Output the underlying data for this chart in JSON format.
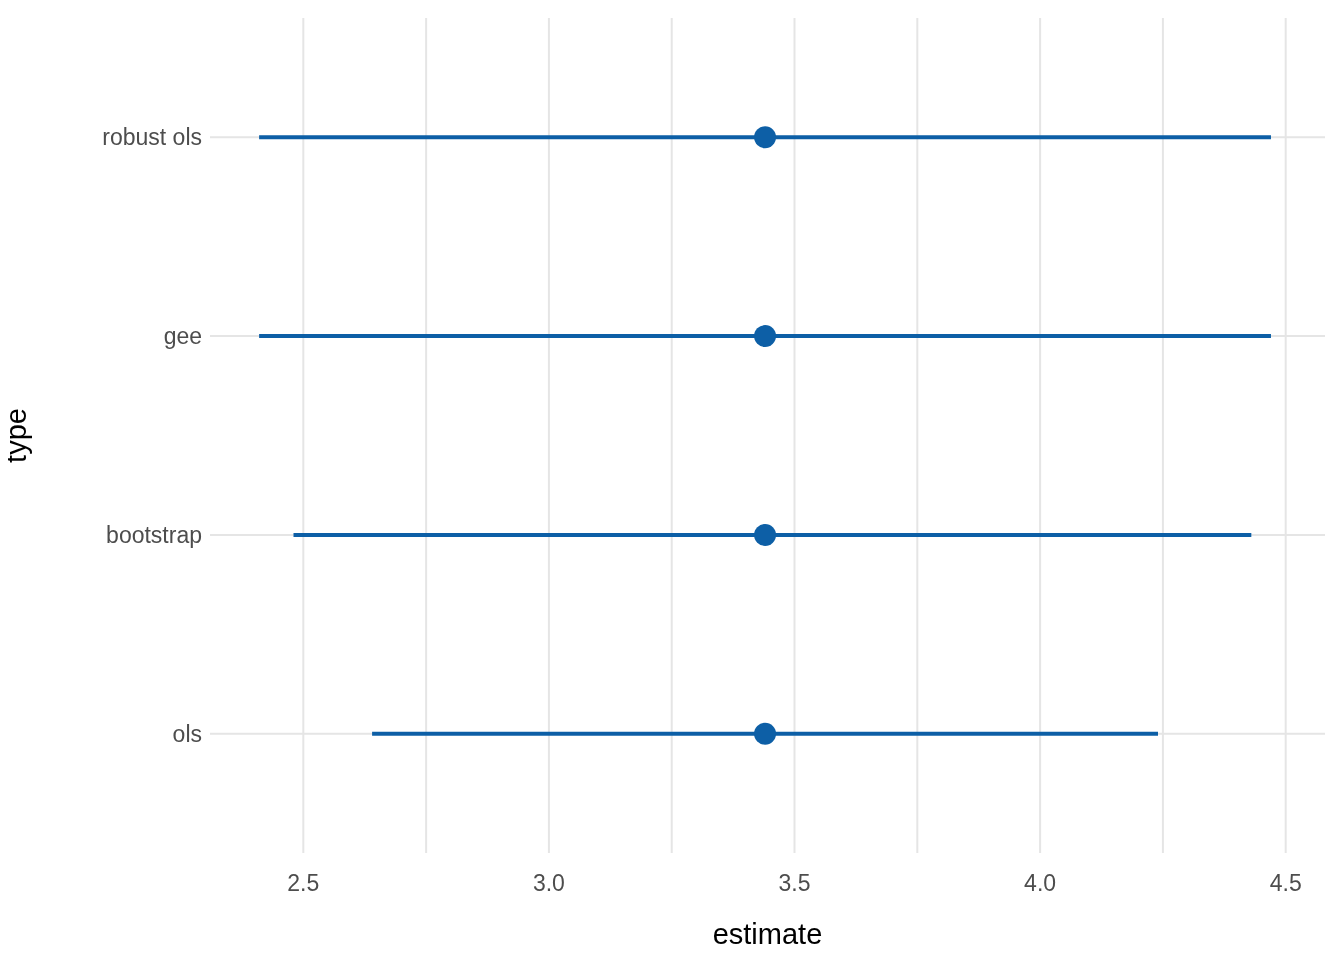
{
  "chart_data": {
    "type": "scatter",
    "orientation": "horizontal",
    "xlabel": "estimate",
    "ylabel": "type",
    "categories": [
      "robust ols",
      "gee",
      "bootstrap",
      "ols"
    ],
    "values": [
      3.44,
      3.44,
      3.44,
      3.44
    ],
    "errors": [
      [
        2.41,
        4.47
      ],
      [
        2.41,
        4.47
      ],
      [
        2.48,
        4.43
      ],
      [
        2.64,
        4.24
      ]
    ],
    "color": "#0d5fa6",
    "marker": "circle",
    "grid": true,
    "xlim": [
      2.31,
      4.58
    ],
    "xticks": [
      2.5,
      {
        "value": 2.75,
        "label": null
      },
      {
        "value": 3,
        "label": "3.0"
      },
      {
        "value": 3.25,
        "label": null
      },
      3.5,
      {
        "value": 3.75,
        "label": null
      },
      {
        "value": 4,
        "label": "4.0"
      },
      {
        "value": 4.25,
        "label": null
      },
      4.5
    ]
  }
}
